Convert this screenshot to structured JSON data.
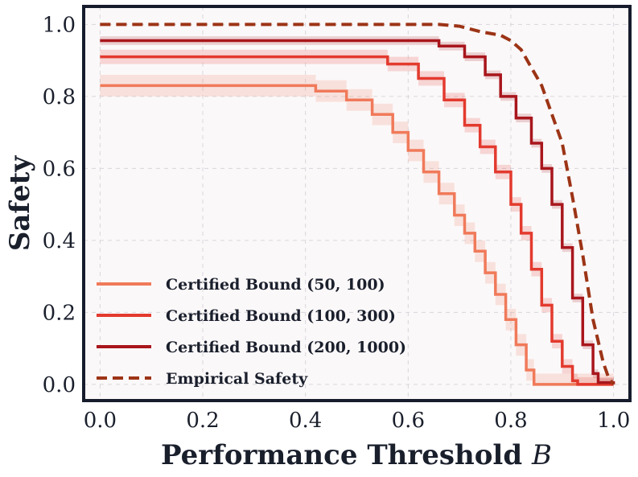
{
  "chart_data": {
    "type": "line",
    "title": "",
    "xlabel": "Performance Threshold",
    "xlabel_var": "B",
    "ylabel": "Safety",
    "xlim": [
      0.0,
      1.0
    ],
    "ylim": [
      -0.045,
      1.05
    ],
    "xticks": [
      "0.0",
      "0.2",
      "0.4",
      "0.6",
      "0.8",
      "1.0"
    ],
    "yticks": [
      "0.0",
      "0.2",
      "0.4",
      "0.6",
      "0.8",
      "1.0"
    ],
    "grid": true,
    "legend_position": "lower-left",
    "series": [
      {
        "name": "Certified Bound (50, 100)",
        "color": "#f07a5a",
        "style": "solid",
        "band": 0.03,
        "points": [
          [
            0.0,
            0.83
          ],
          [
            0.36,
            0.83
          ],
          [
            0.42,
            0.815
          ],
          [
            0.48,
            0.79
          ],
          [
            0.53,
            0.75
          ],
          [
            0.57,
            0.7
          ],
          [
            0.6,
            0.65
          ],
          [
            0.63,
            0.59
          ],
          [
            0.66,
            0.53
          ],
          [
            0.69,
            0.47
          ],
          [
            0.71,
            0.42
          ],
          [
            0.73,
            0.37
          ],
          [
            0.75,
            0.31
          ],
          [
            0.77,
            0.25
          ],
          [
            0.79,
            0.18
          ],
          [
            0.81,
            0.11
          ],
          [
            0.83,
            0.04
          ],
          [
            0.845,
            0.0
          ],
          [
            1.0,
            0.0
          ]
        ]
      },
      {
        "name": "Certified Bound (100, 300)",
        "color": "#e33a2e",
        "style": "solid",
        "band": 0.02,
        "points": [
          [
            0.0,
            0.91
          ],
          [
            0.5,
            0.91
          ],
          [
            0.56,
            0.89
          ],
          [
            0.62,
            0.85
          ],
          [
            0.67,
            0.79
          ],
          [
            0.71,
            0.72
          ],
          [
            0.74,
            0.66
          ],
          [
            0.77,
            0.59
          ],
          [
            0.8,
            0.5
          ],
          [
            0.82,
            0.42
          ],
          [
            0.84,
            0.32
          ],
          [
            0.86,
            0.22
          ],
          [
            0.88,
            0.12
          ],
          [
            0.9,
            0.05
          ],
          [
            0.92,
            0.01
          ],
          [
            0.93,
            0.0
          ],
          [
            1.0,
            0.0
          ]
        ]
      },
      {
        "name": "Certified Bound (200, 1000)",
        "color": "#a8161c",
        "style": "solid",
        "band": 0.012,
        "points": [
          [
            0.0,
            0.955
          ],
          [
            0.6,
            0.955
          ],
          [
            0.66,
            0.94
          ],
          [
            0.71,
            0.91
          ],
          [
            0.75,
            0.86
          ],
          [
            0.78,
            0.8
          ],
          [
            0.81,
            0.74
          ],
          [
            0.84,
            0.67
          ],
          [
            0.86,
            0.6
          ],
          [
            0.88,
            0.5
          ],
          [
            0.9,
            0.38
          ],
          [
            0.92,
            0.24
          ],
          [
            0.94,
            0.11
          ],
          [
            0.96,
            0.03
          ],
          [
            0.97,
            0.005
          ],
          [
            1.0,
            0.0
          ]
        ]
      },
      {
        "name": "Empirical Safety",
        "color": "#9c3416",
        "style": "dashed",
        "band": 0,
        "points": [
          [
            0.0,
            1.0
          ],
          [
            0.66,
            1.0
          ],
          [
            0.7,
            0.995
          ],
          [
            0.74,
            0.98
          ],
          [
            0.78,
            0.97
          ],
          [
            0.8,
            0.955
          ],
          [
            0.82,
            0.93
          ],
          [
            0.84,
            0.88
          ],
          [
            0.86,
            0.83
          ],
          [
            0.88,
            0.75
          ],
          [
            0.9,
            0.67
          ],
          [
            0.92,
            0.52
          ],
          [
            0.94,
            0.36
          ],
          [
            0.96,
            0.18
          ],
          [
            0.98,
            0.06
          ],
          [
            0.99,
            0.02
          ],
          [
            1.0,
            0.0
          ]
        ]
      }
    ]
  }
}
